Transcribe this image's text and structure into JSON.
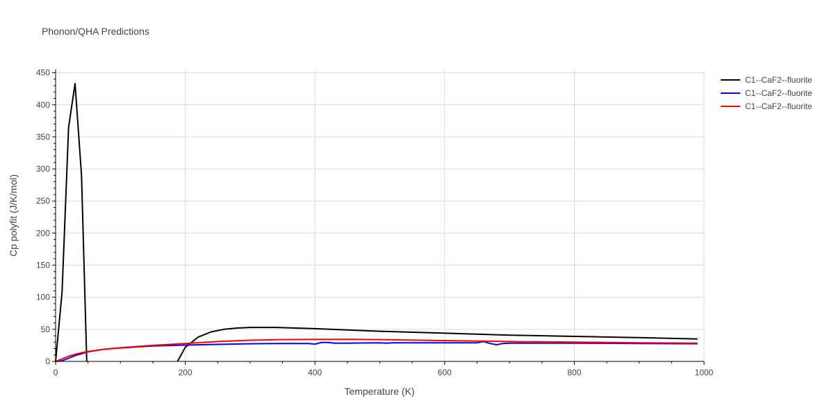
{
  "chart_data": {
    "type": "line",
    "title": "Phonon/QHA Predictions",
    "xlabel": "Temperature (K)",
    "ylabel": "Cp polyfit (J/K/mol)",
    "xlim": [
      0,
      1000
    ],
    "ylim": [
      0,
      455
    ],
    "x_ticks": [
      0,
      200,
      400,
      600,
      800,
      1000
    ],
    "y_ticks": [
      0,
      50,
      100,
      150,
      200,
      250,
      300,
      350,
      400,
      450
    ],
    "grid": true,
    "legend_position": "top-right",
    "series": [
      {
        "name": "C1--CaF2--fluorite",
        "color": "#000000",
        "segments": [
          {
            "x": [
              0,
              10,
              20,
              30,
              40,
              48
            ],
            "y": [
              0,
              108,
              365,
              433,
              290,
              0
            ]
          },
          {
            "x": [
              188,
              200,
              220,
              240,
              260,
              280,
              300,
              340,
              400,
              500,
              600,
              700,
              800,
              900,
              990
            ],
            "y": [
              0,
              22,
              38,
              46,
              50,
              52,
              53,
              53,
              51,
              47,
              44,
              41,
              39,
              37,
              35
            ]
          }
        ]
      },
      {
        "name": "C1--CaF2--fluorite",
        "color": "#0000ff",
        "segments": [
          {
            "x": [
              0,
              10,
              20,
              30,
              40,
              50,
              75,
              100,
              150,
              200,
              250,
              300,
              350,
              390,
              400,
              410,
              420,
              430,
              450,
              500,
              510,
              520,
              600,
              650,
              660,
              670,
              680,
              690,
              700,
              800,
              900,
              990
            ],
            "y": [
              0,
              1,
              5,
              9,
              12,
              15,
              19,
              21,
              24,
              25.5,
              26.5,
              27.5,
              28,
              28,
              27,
              29.5,
              29.5,
              28.5,
              28.5,
              29,
              28.5,
              29,
              29,
              29,
              31,
              28,
              26,
              28,
              28.5,
              28.5,
              28,
              27.5
            ]
          }
        ]
      },
      {
        "name": "C1--CaF2--fluorite",
        "color": "#ff0000",
        "segments": [
          {
            "x": [
              0,
              10,
              20,
              30,
              40,
              50,
              75,
              100,
              150,
              200,
              250,
              300,
              350,
              400,
              450,
              500,
              600,
              700,
              800,
              900,
              990
            ],
            "y": [
              0,
              4,
              8,
              11,
              13.5,
              15.5,
              19,
              21.5,
              25,
              28,
              31,
              33,
              34,
              34.5,
              34.5,
              34,
              32.5,
              31,
              30,
              29,
              28.5
            ]
          }
        ]
      }
    ]
  }
}
